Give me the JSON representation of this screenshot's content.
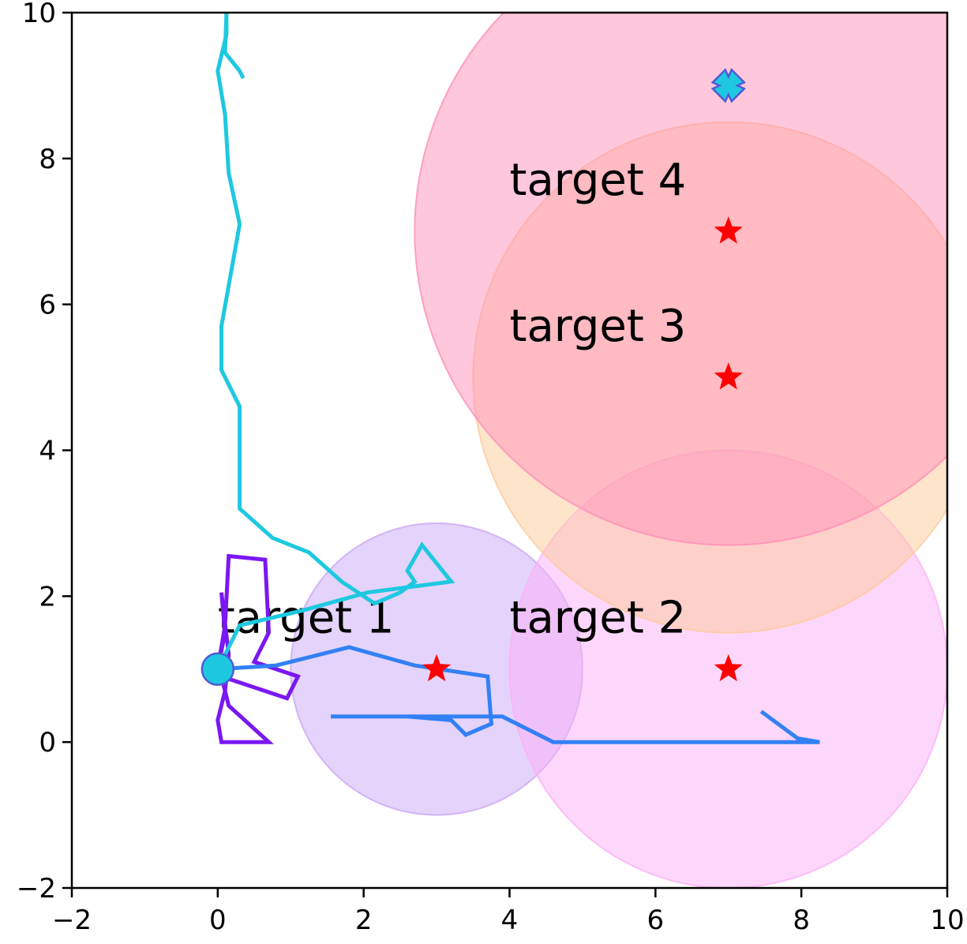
{
  "chart_data": {
    "type": "scatter",
    "title": "",
    "xlabel": "",
    "ylabel": "",
    "xlim": [
      -2,
      10
    ],
    "ylim": [
      -2,
      10
    ],
    "xticks": [
      -2,
      0,
      2,
      4,
      6,
      8,
      10
    ],
    "yticks": [
      -2,
      0,
      2,
      4,
      6,
      8,
      10
    ],
    "grid": false,
    "start_point": {
      "x": 0,
      "y": 1,
      "color": "#1ec8e0"
    },
    "end_marker": {
      "x": 7,
      "y": 9,
      "color": "#1ec8e0"
    },
    "regions": [
      {
        "cx": 3,
        "cy": 1,
        "r": 2,
        "color": "#c9a8f5"
      },
      {
        "cx": 7,
        "cy": 1,
        "r": 3,
        "color": "#fbb0f7"
      },
      {
        "cx": 7,
        "cy": 5,
        "r": 3.5,
        "color": "#ffc99a"
      },
      {
        "cx": 7,
        "cy": 7,
        "r": 4.3,
        "color": "#ff8fb8"
      }
    ],
    "targets": [
      {
        "label": "target 1",
        "x": 3,
        "y": 1,
        "label_x": 0,
        "label_y": 1.5
      },
      {
        "label": "target 2",
        "x": 7,
        "y": 1,
        "label_x": 4,
        "label_y": 1.5
      },
      {
        "label": "target 3",
        "x": 7,
        "y": 5,
        "label_x": 4,
        "label_y": 5.5
      },
      {
        "label": "target 4",
        "x": 7,
        "y": 7,
        "label_x": 4,
        "label_y": 7.5
      }
    ],
    "series": [
      {
        "color": "#7a17f2",
        "points": [
          [
            0,
            1
          ],
          [
            0.1,
            1.5
          ],
          [
            0.05,
            2.05
          ],
          [
            0.15,
            1.2
          ],
          [
            0.1,
            0.7
          ],
          [
            0,
            0.3
          ],
          [
            0.05,
            0
          ],
          [
            0.7,
            0
          ],
          [
            0.15,
            0.5
          ],
          [
            0.05,
            0.9
          ],
          [
            0.95,
            0.6
          ],
          [
            1.1,
            0.9
          ],
          [
            0.5,
            1.1
          ],
          [
            0.7,
            1.5
          ],
          [
            0.65,
            2.5
          ],
          [
            0.15,
            2.55
          ],
          [
            0.1,
            1.6
          ],
          [
            0,
            1
          ]
        ]
      },
      {
        "color": "#3380f5",
        "points": [
          [
            0,
            1
          ],
          [
            0.8,
            1.05
          ],
          [
            1.8,
            1.3
          ],
          [
            2.7,
            1.05
          ],
          [
            3.7,
            0.9
          ],
          [
            3.75,
            0.25
          ],
          [
            3.4,
            0.1
          ],
          [
            3.2,
            0.3
          ],
          [
            2.6,
            0.35
          ],
          [
            1.55,
            0.35
          ],
          [
            3.9,
            0.35
          ],
          [
            4.6,
            0
          ],
          [
            8.25,
            0
          ],
          [
            7.95,
            0.05
          ],
          [
            7.45,
            0.42
          ]
        ]
      },
      {
        "color": "#1ec8e0",
        "points": [
          [
            0,
            1
          ],
          [
            0.3,
            1.6
          ],
          [
            1.15,
            1.8
          ],
          [
            2.05,
            2.05
          ],
          [
            3.2,
            2.2
          ],
          [
            2.8,
            2.7
          ],
          [
            2.6,
            2.35
          ],
          [
            2.7,
            2.2
          ],
          [
            2.5,
            2.05
          ],
          [
            2.15,
            1.9
          ],
          [
            1.7,
            2.2
          ],
          [
            1.25,
            2.6
          ],
          [
            0.75,
            2.8
          ],
          [
            0.3,
            3.2
          ],
          [
            0.3,
            4.6
          ],
          [
            0.05,
            5.1
          ],
          [
            0.05,
            5.7
          ],
          [
            0.3,
            7.1
          ],
          [
            0.15,
            7.8
          ],
          [
            0.1,
            8.6
          ],
          [
            0,
            9.2
          ],
          [
            0.12,
            9.7
          ],
          [
            0.12,
            10.0
          ],
          [
            0.1,
            9.45
          ],
          [
            0.3,
            9.2
          ],
          [
            0.35,
            9.1
          ]
        ]
      }
    ]
  }
}
